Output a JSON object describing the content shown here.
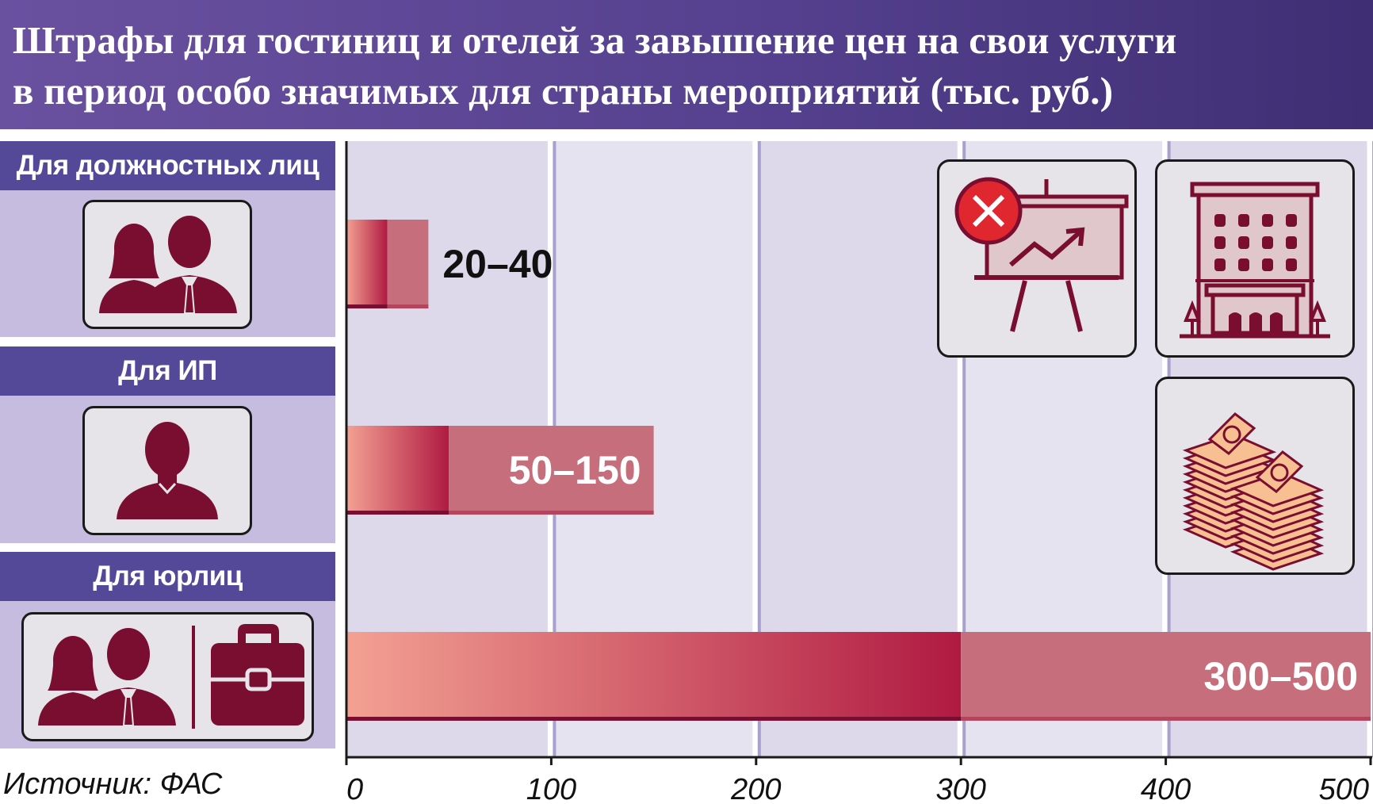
{
  "title": {
    "line1": "Штрафы для гостиниц и отелей за завышение цен на свои услуги",
    "line2": "в период особо значимых для страны мероприятий (тыс. руб.)"
  },
  "categories": [
    {
      "label": "Для должностных лиц",
      "icon": "two-persons-icon"
    },
    {
      "label": "Для ИП",
      "icon": "person-icon"
    },
    {
      "label": "Для юрлиц",
      "icon": "persons-and-briefcase-icon"
    }
  ],
  "source": "Источник: ФАС",
  "colors": {
    "header": "#55418f",
    "category_label": "#544999",
    "category_bg": "#c5bcdf",
    "bar_dark": "#b52046",
    "bar_light": "#c76e7d",
    "gridline": "#a8a0cd",
    "icon_fill": "#7a0e31"
  },
  "chart_data": {
    "type": "bar",
    "orientation": "horizontal",
    "categories": [
      "Для должностных лиц",
      "Для ИП",
      "Для юрлиц"
    ],
    "ranges": [
      [
        20,
        40
      ],
      [
        50,
        150
      ],
      [
        300,
        500
      ]
    ],
    "data_labels": [
      "20–40",
      "50–150",
      "300–500"
    ],
    "xlim": [
      0,
      500
    ],
    "xticks": [
      0,
      100,
      200,
      300,
      400,
      500
    ],
    "xtick_labels": [
      "0",
      "100",
      "200",
      "300",
      "400",
      "500"
    ],
    "grid": true,
    "title": "Штрафы для гостиниц и отелей за завышение цен на свои услуги в период особо значимых для страны мероприятий (тыс. руб.)"
  },
  "decorations": [
    "presentation-board-cross-icon",
    "hotel-building-icon",
    "money-stacks-icon"
  ]
}
